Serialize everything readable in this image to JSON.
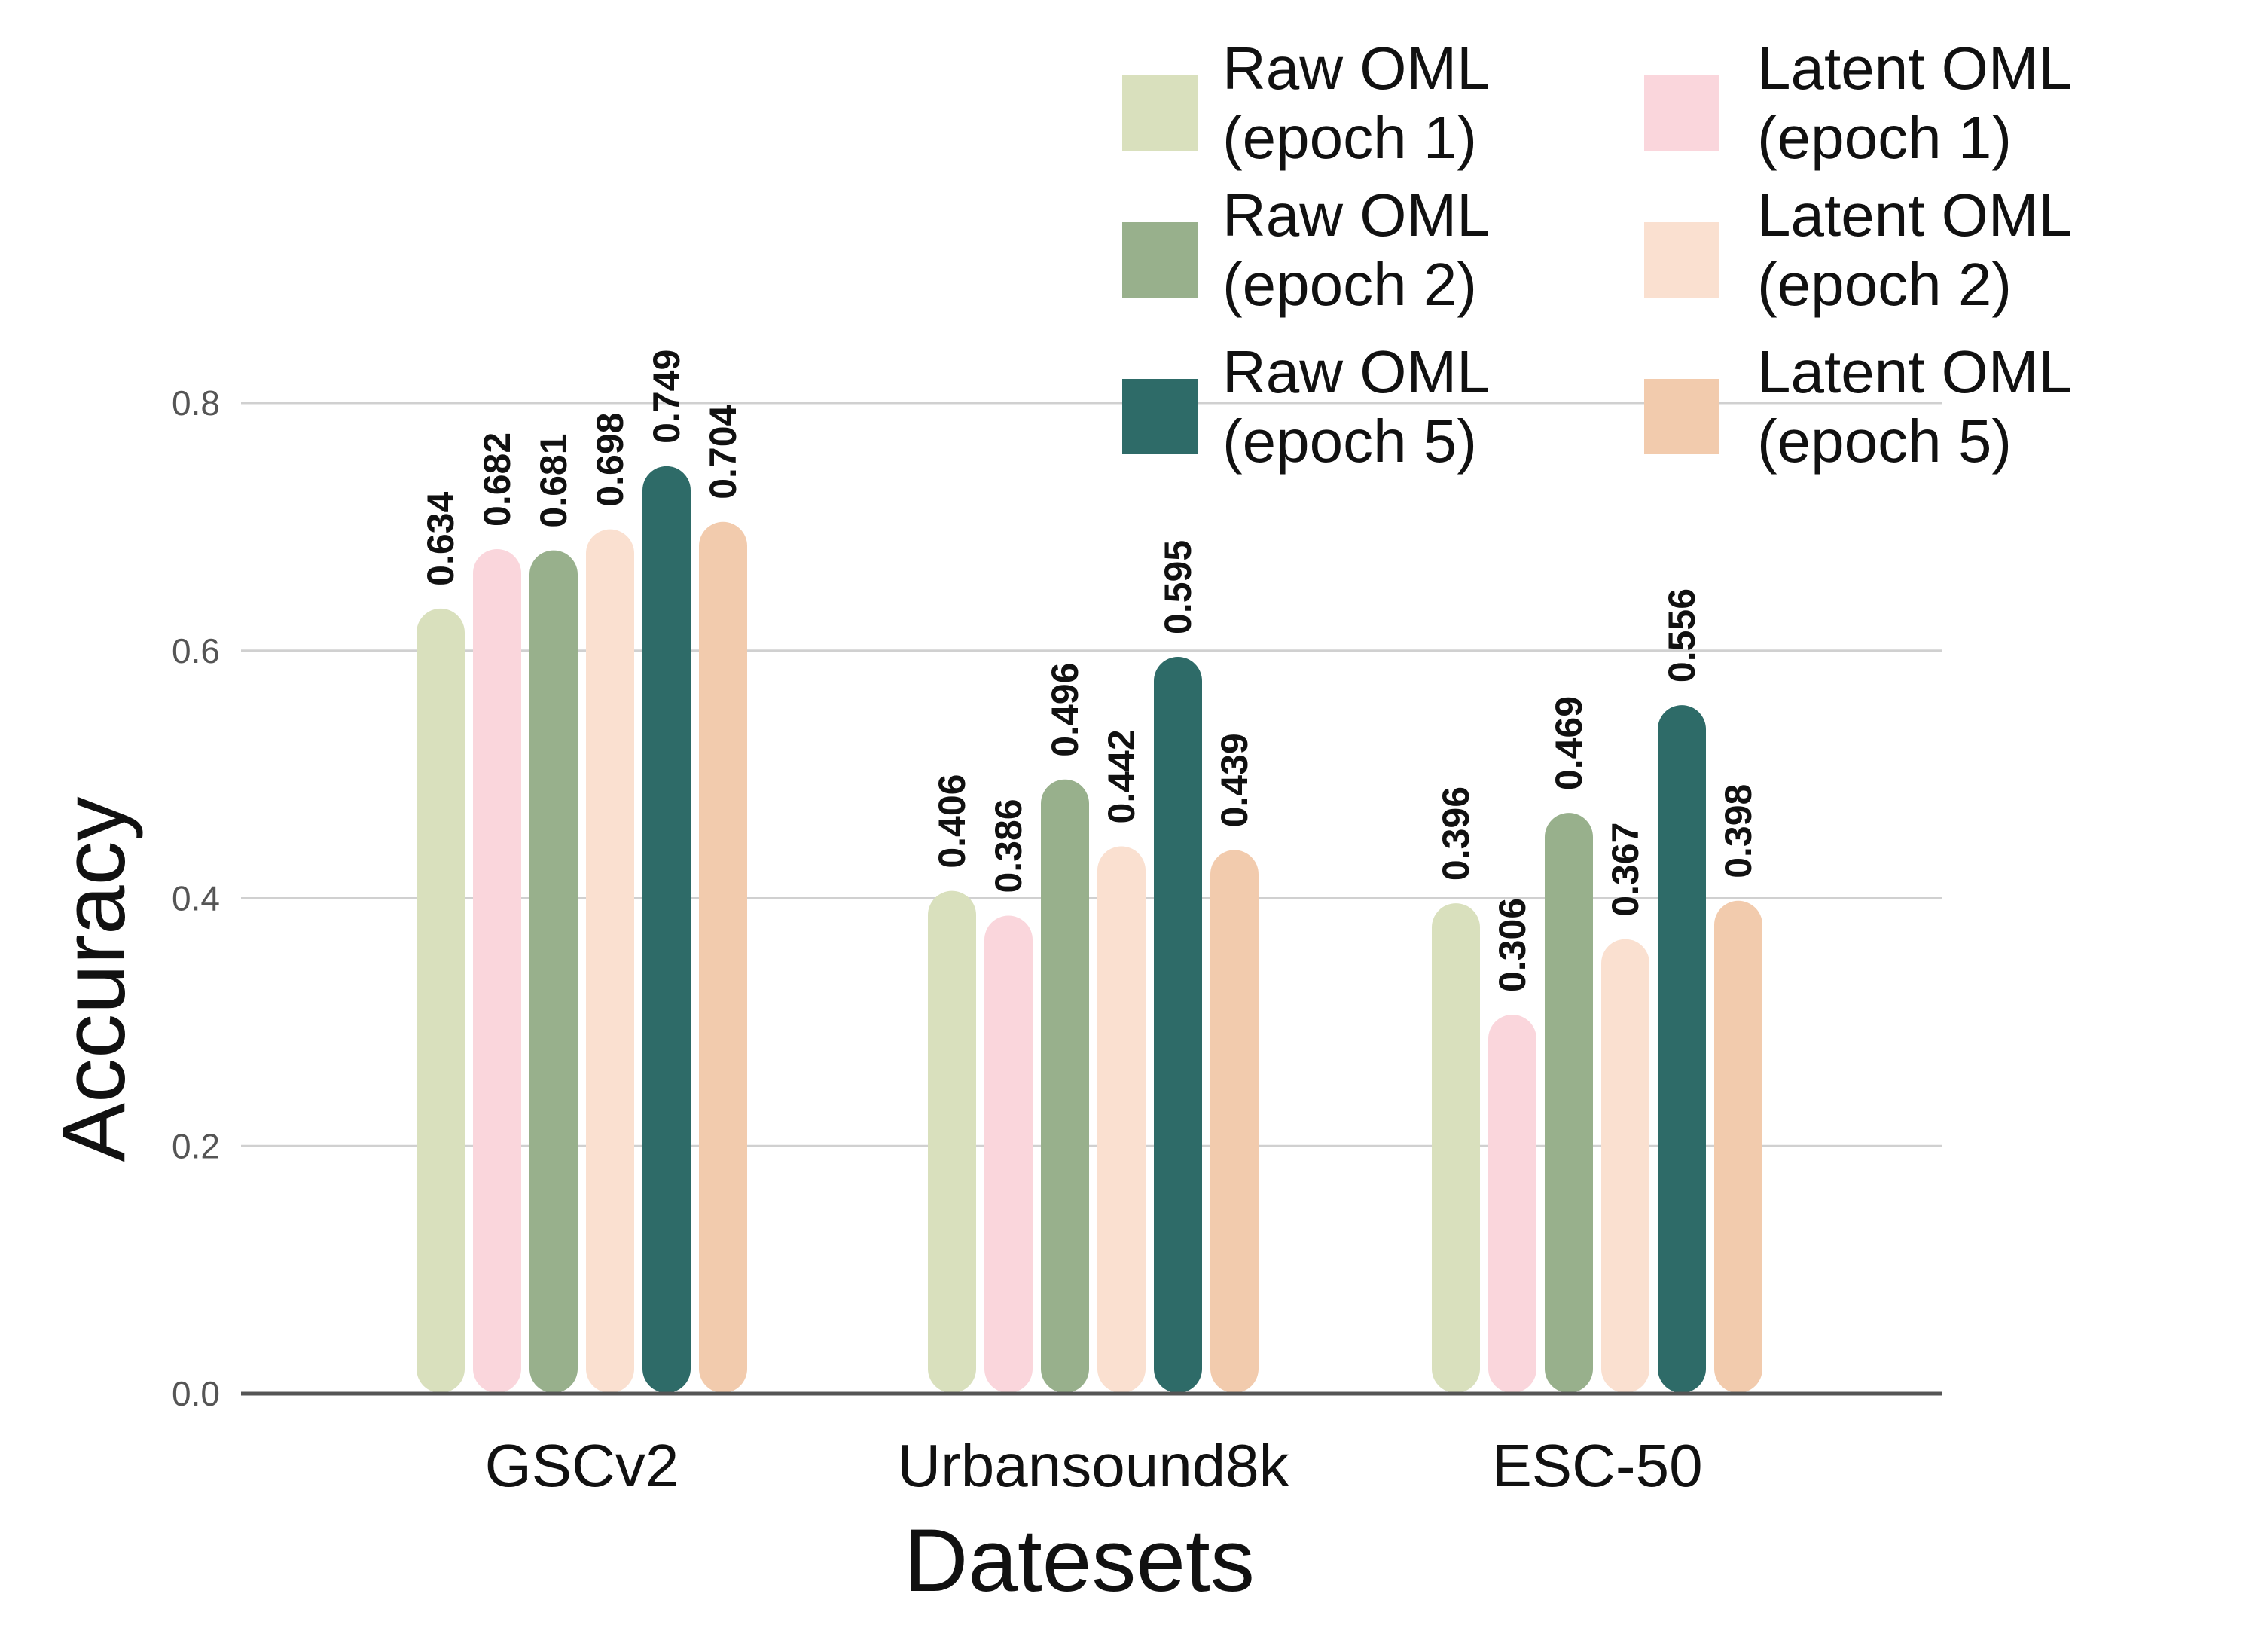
{
  "chart_data": {
    "type": "bar",
    "title": "",
    "xlabel": "Datesets",
    "ylabel": "Accuracy",
    "ylim": [
      0,
      0.8
    ],
    "yticks": [
      "0.0",
      "0.2",
      "0.4",
      "0.6",
      "0.8"
    ],
    "grid": true,
    "legend_position": "top-right",
    "categories": [
      "GSCv2",
      "Urbansound8k",
      "ESC-50"
    ],
    "series": [
      {
        "name": "Raw OML (epoch 1)",
        "legend_lines": [
          "Raw OML",
          "(epoch 1)"
        ],
        "color": "#d9e0bd",
        "values": [
          0.634,
          0.406,
          0.396
        ],
        "labels": [
          "0.634",
          "0.406",
          "0.396"
        ]
      },
      {
        "name": "Latent OML (epoch 1)",
        "legend_lines": [
          "Latent OML",
          "(epoch 1)"
        ],
        "color": "#fad6dc",
        "values": [
          0.682,
          0.386,
          0.306
        ],
        "labels": [
          "0.682",
          "0.386",
          "0.306"
        ]
      },
      {
        "name": "Raw OML (epoch 2)",
        "legend_lines": [
          "Raw OML",
          "(epoch 2)"
        ],
        "color": "#98b08c",
        "values": [
          0.681,
          0.496,
          0.469
        ],
        "labels": [
          "0.681",
          "0.496",
          "0.469"
        ]
      },
      {
        "name": "Latent OML (epoch 2)",
        "legend_lines": [
          "Latent OML",
          "(epoch 2)"
        ],
        "color": "#fae0d0",
        "values": [
          0.698,
          0.442,
          0.367
        ],
        "labels": [
          "0.698",
          "0.442",
          "0.367"
        ]
      },
      {
        "name": "Raw OML (epoch 5)",
        "legend_lines": [
          "Raw OML",
          "(epoch 5)"
        ],
        "color": "#2e6b68",
        "values": [
          0.749,
          0.595,
          0.556
        ],
        "labels": [
          "0.749",
          "0.595",
          "0.556"
        ]
      },
      {
        "name": "Latent OML (epoch 5)",
        "legend_lines": [
          "Latent OML",
          "(epoch 5)"
        ],
        "color": "#f2cbad",
        "values": [
          0.704,
          0.439,
          0.398
        ],
        "labels": [
          "0.704",
          "0.439",
          "0.398"
        ]
      }
    ]
  }
}
